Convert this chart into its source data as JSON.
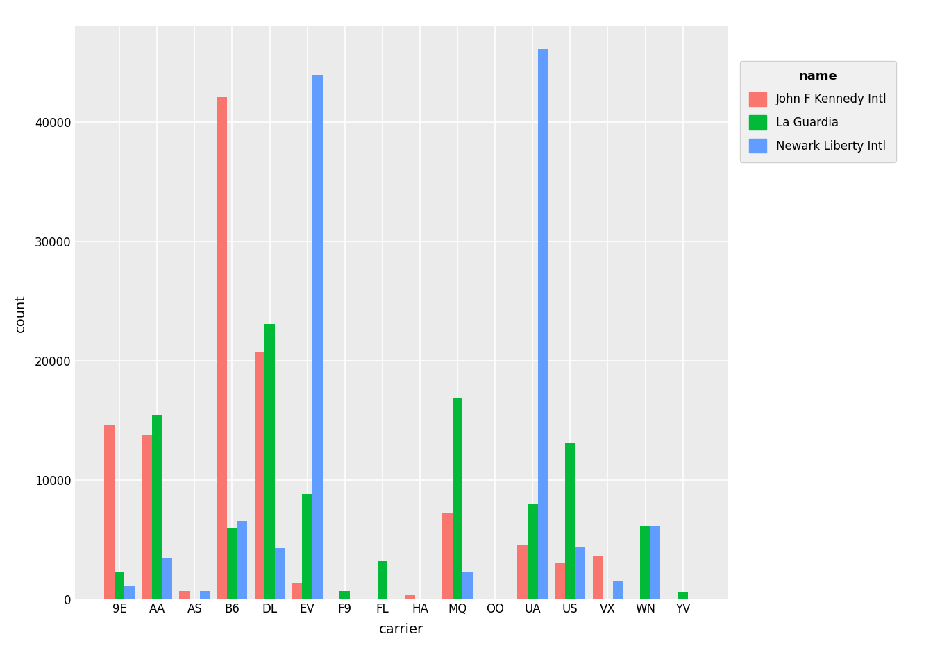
{
  "carriers": [
    "9E",
    "AA",
    "AS",
    "B6",
    "DL",
    "EV",
    "F9",
    "FL",
    "HA",
    "MQ",
    "OO",
    "UA",
    "US",
    "VX",
    "WN",
    "YV"
  ],
  "airports": [
    "John F Kennedy Intl",
    "La Guardia",
    "Newark Liberty Intl"
  ],
  "colors": [
    "#F8766D",
    "#00BA38",
    "#619CFF"
  ],
  "data": {
    "John F Kennedy Intl": {
      "9E": 14651,
      "AA": 13783,
      "AS": 714,
      "B6": 42076,
      "DL": 20701,
      "EV": 1408,
      "F9": 0,
      "FL": 0,
      "HA": 342,
      "MQ": 7193,
      "OO": 32,
      "UA": 4534,
      "US": 2995,
      "VX": 3596,
      "WN": 0,
      "YV": 0
    },
    "La Guardia": {
      "9E": 2353,
      "AA": 15459,
      "AS": 0,
      "B6": 6002,
      "DL": 23067,
      "EV": 8826,
      "F9": 685,
      "FL": 3260,
      "HA": 0,
      "MQ": 16928,
      "OO": 0,
      "UA": 8015,
      "US": 13136,
      "VX": 0,
      "WN": 6188,
      "YV": 601
    },
    "Newark Liberty Intl": {
      "9E": 1084,
      "AA": 3487,
      "AS": 714,
      "B6": 6557,
      "DL": 4297,
      "EV": 43939,
      "F9": 0,
      "FL": 0,
      "HA": 0,
      "MQ": 2276,
      "OO": 0,
      "UA": 46087,
      "US": 4405,
      "VX": 1566,
      "WN": 6188,
      "YV": 0
    }
  },
  "xlabel": "carrier",
  "ylabel": "count",
  "legend_title": "name",
  "panel_background": "#EBEBEB",
  "grid_color": "#FFFFFF",
  "fig_background": "#FFFFFF",
  "ylim": [
    0,
    48000
  ],
  "yticks": [
    0,
    10000,
    20000,
    30000,
    40000
  ],
  "bar_width": 0.27,
  "tick_fontsize": 12,
  "label_fontsize": 14,
  "legend_fontsize": 12,
  "legend_title_fontsize": 13
}
